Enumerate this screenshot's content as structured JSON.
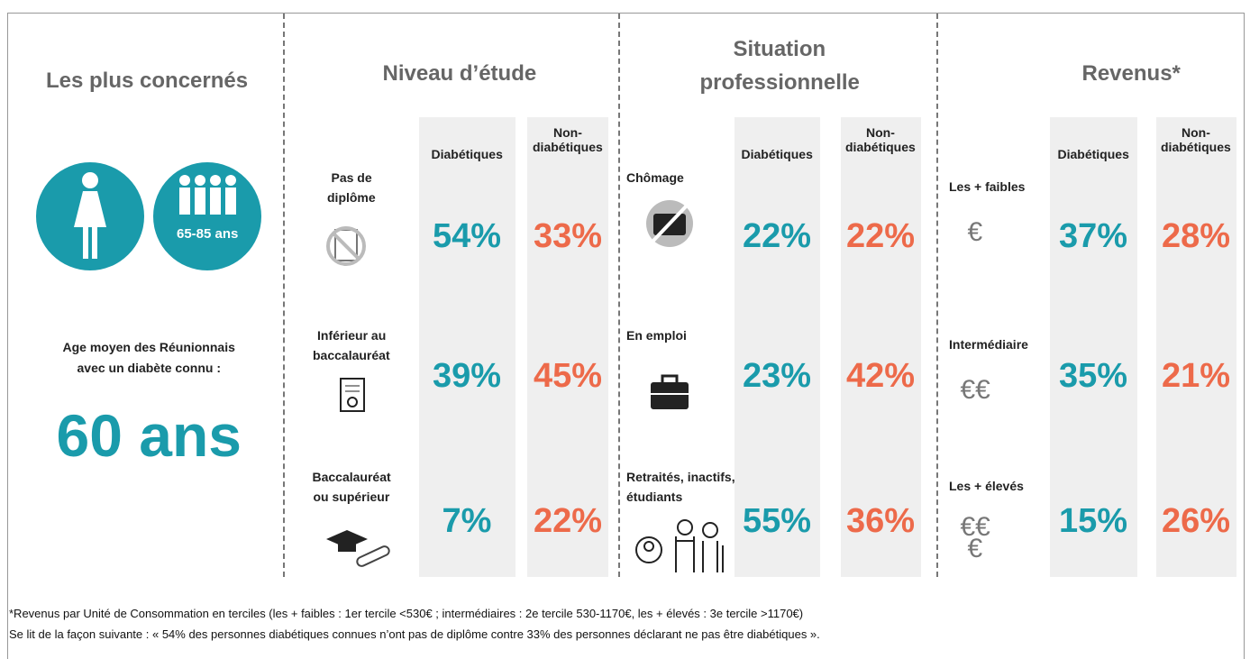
{
  "left": {
    "title": "Les plus concernés",
    "badge": "65-85 ans",
    "caption": [
      "Age moyen des Réunionnais",
      "avec un diabète connu :"
    ],
    "value": "60 ans"
  },
  "sections": [
    {
      "title": [
        "Niveau d’étude"
      ],
      "columns": [
        [
          "Diabétiques"
        ],
        [
          "Non-",
          "diabétiques"
        ]
      ],
      "rows": [
        {
          "label": [
            "Pas de",
            "diplôme"
          ],
          "diabetic": "54%",
          "non_diabetic": "33%"
        },
        {
          "label": [
            "Inférieur au",
            "baccalauréat"
          ],
          "diabetic": "39%",
          "non_diabetic": "45%"
        },
        {
          "label": [
            "Baccalauréat",
            "ou supérieur"
          ],
          "diabetic": "7%",
          "non_diabetic": "22%"
        }
      ]
    },
    {
      "title": [
        "Situation",
        "professionnelle"
      ],
      "columns": [
        [
          "Diabétiques"
        ],
        [
          "Non-",
          "diabétiques"
        ]
      ],
      "rows": [
        {
          "label": [
            "Chômage"
          ],
          "diabetic": "22%",
          "non_diabetic": "22%"
        },
        {
          "label": [
            "En emploi"
          ],
          "diabetic": "23%",
          "non_diabetic": "42%"
        },
        {
          "label": [
            "Retraités, inactifs,",
            "étudiants"
          ],
          "diabetic": "55%",
          "non_diabetic": "36%"
        }
      ]
    },
    {
      "title": [
        "Revenus*"
      ],
      "columns": [
        [
          "Diabétiques"
        ],
        [
          "Non-",
          "diabétiques"
        ]
      ],
      "rows": [
        {
          "label": [
            "Les + faibles"
          ],
          "symbol": [
            "€"
          ],
          "diabetic": "37%",
          "non_diabetic": "28%"
        },
        {
          "label": [
            "Intermédiaire"
          ],
          "symbol": [
            "€€"
          ],
          "diabetic": "35%",
          "non_diabetic": "21%"
        },
        {
          "label": [
            "Les + élevés"
          ],
          "symbol": [
            "€€",
            "€"
          ],
          "diabetic": "15%",
          "non_diabetic": "26%"
        }
      ]
    }
  ],
  "footnotes": [
    "*Revenus par Unité de Consommation en terciles (les + faibles : 1er tercile <530€ ; intermédiaires : 2e tercile 530-1170€, les + élevés : 3e tercile >1170€)",
    "Se lit de la façon suivante : « 54% des personnes diabétiques connues n’ont pas de diplôme contre 33% des personnes déclarant ne pas être diabétiques »."
  ]
}
